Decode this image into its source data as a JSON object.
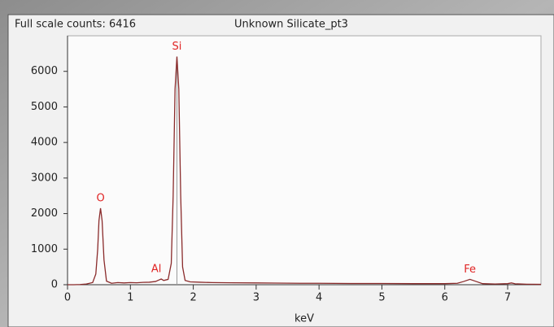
{
  "chart_data": {
    "type": "line",
    "title": "Unknown Silicate_pt3",
    "subtitle": "Full scale counts: 6416",
    "x_label": "keV",
    "x": [
      0,
      0.1,
      0.2,
      0.3,
      0.4,
      0.45,
      0.48,
      0.5,
      0.525,
      0.55,
      0.58,
      0.62,
      0.7,
      0.8,
      0.9,
      1.0,
      1.1,
      1.2,
      1.3,
      1.4,
      1.45,
      1.49,
      1.53,
      1.6,
      1.65,
      1.68,
      1.71,
      1.74,
      1.77,
      1.8,
      1.83,
      1.87,
      1.95,
      2.1,
      2.3,
      2.6,
      3.0,
      3.3,
      3.7,
      4.0,
      4.5,
      5.0,
      5.5,
      6.0,
      6.2,
      6.3,
      6.4,
      6.5,
      6.6,
      6.8,
      7.0,
      7.06,
      7.12,
      7.3,
      7.53
    ],
    "values": [
      0,
      0,
      5,
      20,
      60,
      300,
      1000,
      1800,
      2150,
      1800,
      700,
      100,
      40,
      60,
      50,
      60,
      55,
      65,
      70,
      90,
      130,
      160,
      120,
      150,
      600,
      2500,
      5500,
      6416,
      5500,
      2500,
      500,
      120,
      80,
      70,
      60,
      55,
      50,
      45,
      40,
      40,
      35,
      35,
      30,
      30,
      40,
      90,
      150,
      90,
      30,
      20,
      30,
      50,
      25,
      15,
      10
    ],
    "color": "#8a2b2b",
    "annotations": [
      {
        "text": "O",
        "x": 0.525,
        "y": 2150
      },
      {
        "text": "Al",
        "x": 1.49,
        "y": 160
      },
      {
        "text": "Si",
        "x": 1.74,
        "y": 6416
      },
      {
        "text": "Fe",
        "x": 6.4,
        "y": 150
      }
    ],
    "annotation_color": "#e02424",
    "xlim": [
      0,
      7.53
    ],
    "xticks": [
      0,
      1,
      2,
      3,
      4,
      5,
      6,
      7
    ],
    "ylim": [
      0,
      7000
    ],
    "yticks": [
      0,
      1000,
      2000,
      3000,
      4000,
      5000,
      6000
    ]
  }
}
